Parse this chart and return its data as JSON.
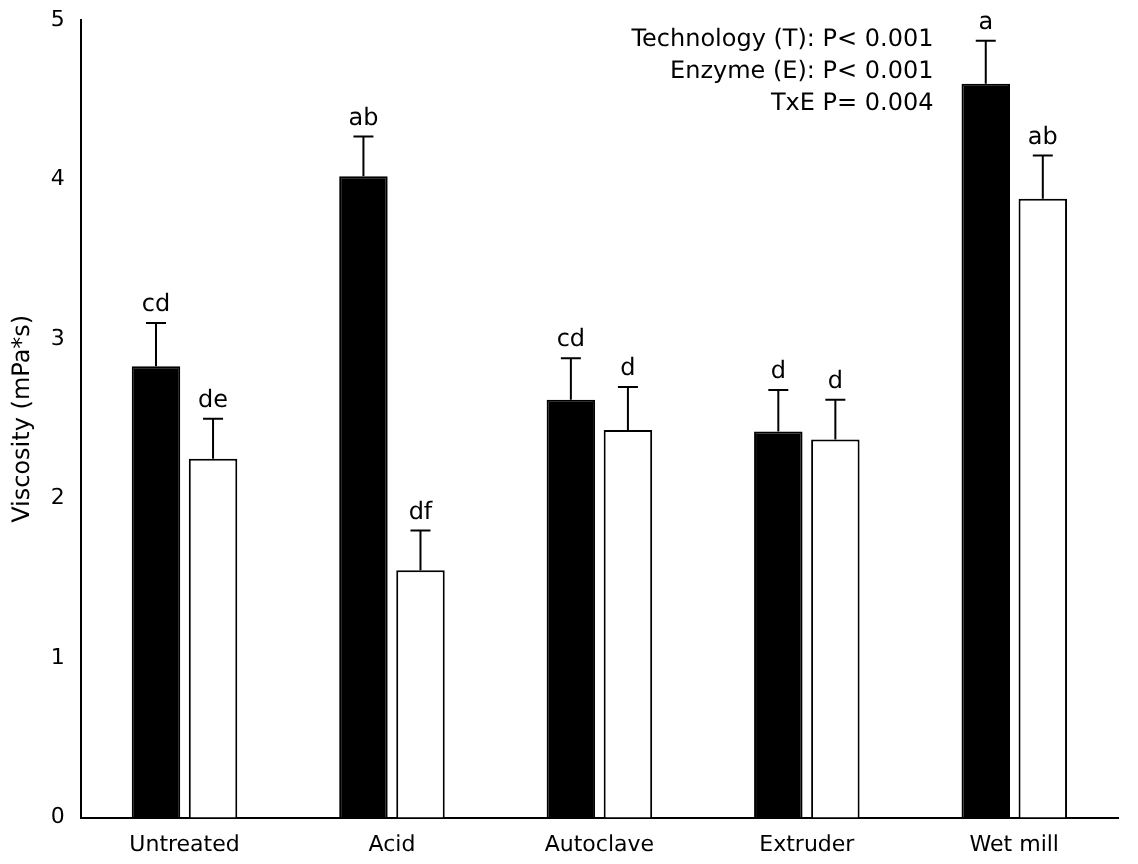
{
  "chart_data": {
    "type": "bar",
    "ylabel": "Viscosity (mPa*s)",
    "categories": [
      "Untreated",
      "Acid",
      "Autoclave",
      "Extruder",
      "Wet mill"
    ],
    "series": [
      {
        "color": "#000000",
        "values": [
          2.83,
          4.02,
          2.62,
          2.42,
          4.6
        ],
        "errors": [
          [
            2.83,
            3.1
          ],
          [
            4.02,
            4.27
          ],
          [
            2.62,
            2.88
          ],
          [
            2.42,
            2.68
          ],
          [
            4.6,
            4.87
          ]
        ]
      },
      {
        "color": "#ffffff",
        "values": [
          2.25,
          1.55,
          2.43,
          2.37,
          3.88
        ],
        "errors": [
          [
            2.25,
            2.5
          ],
          [
            1.55,
            1.8
          ],
          [
            2.43,
            2.7
          ],
          [
            2.37,
            2.62
          ],
          [
            3.88,
            4.15
          ]
        ]
      }
    ],
    "ylim": [
      0,
      5
    ],
    "yticks": [
      0,
      1,
      2,
      3,
      4,
      5
    ],
    "grid": false,
    "legend": false,
    "annotations": [
      "Technology (T): P< 0.001",
      "Enzyme (E): P< 0.001",
      "TxE P= 0.004",
      "cd",
      "de",
      "ab",
      "df",
      "cd",
      "d",
      "d",
      "d",
      "a",
      "ab"
    ]
  }
}
